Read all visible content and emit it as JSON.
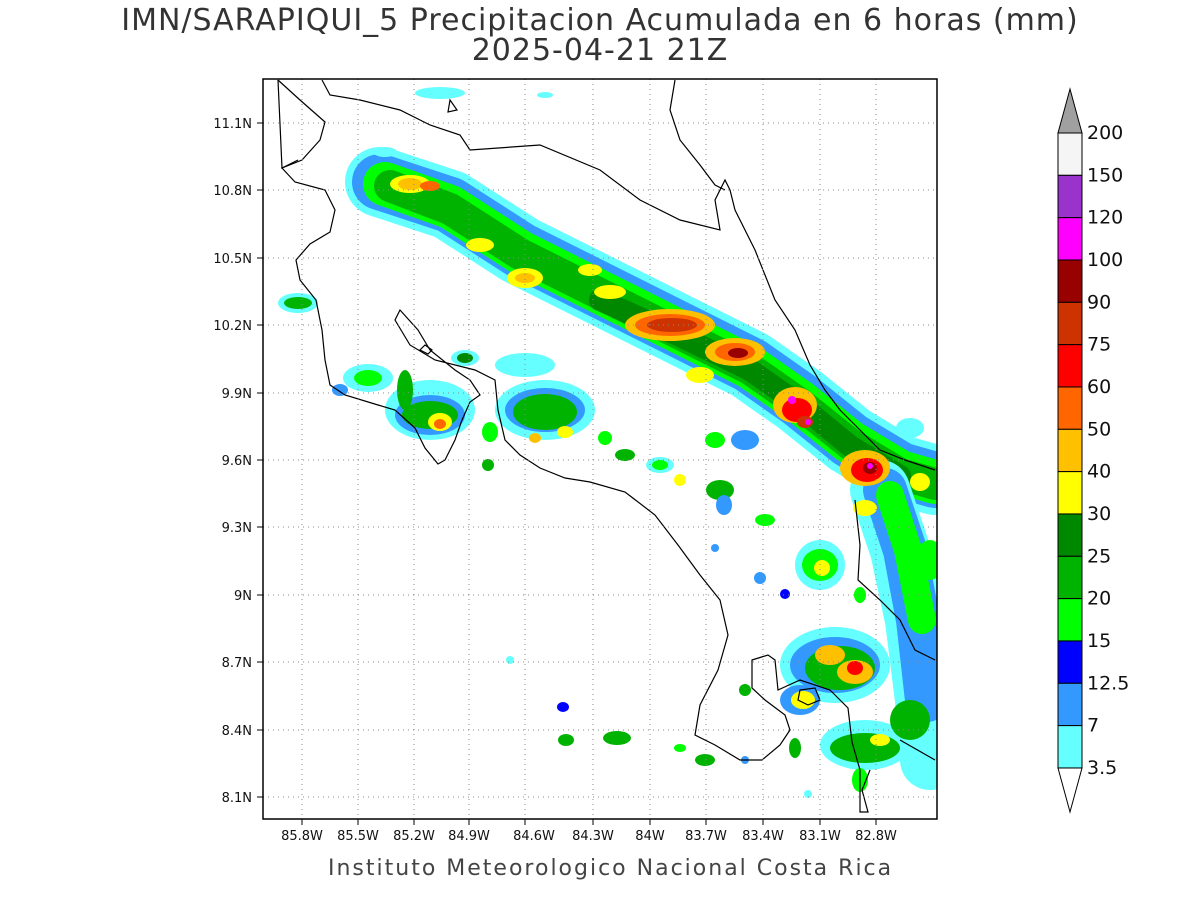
{
  "title": {
    "line1": "IMN/SARAPIQUI_5 Precipitacion Acumulada en 6 horas (mm)",
    "line2": "2025-04-21 21Z"
  },
  "footer": "Instituto Meteorologico Nacional Costa Rica",
  "axes": {
    "lon_labels": [
      "85.8W",
      "85.5W",
      "85.2W",
      "84.9W",
      "84.6W",
      "84.3W",
      "84W",
      "83.7W",
      "83.4W",
      "83.1W",
      "82.8W"
    ],
    "lat_labels": [
      "11.1N",
      "10.8N",
      "10.5N",
      "10.2N",
      "9.9N",
      "9.6N",
      "9.3N",
      "9N",
      "8.7N",
      "8.4N",
      "8.1N"
    ],
    "grid": "dotted"
  },
  "colorbar": {
    "labels": [
      "200",
      "150",
      "120",
      "100",
      "90",
      "75",
      "60",
      "50",
      "40",
      "30",
      "25",
      "20",
      "15",
      "12.5",
      "7",
      "3.5"
    ],
    "colors": [
      "#a0a0a0",
      "#f5f5f5",
      "#9933cc",
      "#ff00ff",
      "#990000",
      "#cc3300",
      "#ff0000",
      "#ff6600",
      "#ffc000",
      "#ffff00",
      "#008800",
      "#00b300",
      "#00ff00",
      "#0000ff",
      "#3399ff",
      "#66ffff",
      "#ffffff"
    ]
  },
  "colors": {
    "cyan": "#66ffff",
    "lightblue": "#3399ff",
    "blue": "#0000ff",
    "lime": "#00ff00",
    "green": "#00b300",
    "darkgreen": "#008800",
    "yellow": "#ffff00",
    "gold": "#ffc000",
    "orange": "#ff6600",
    "red": "#ff0000",
    "rust": "#cc3300",
    "darkred": "#990000",
    "magenta": "#ff00ff"
  }
}
